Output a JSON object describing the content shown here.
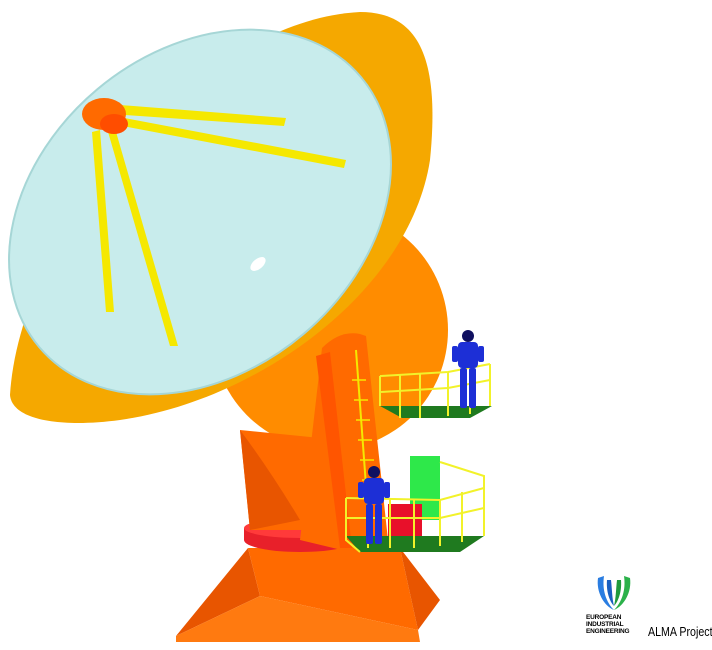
{
  "logo": {
    "line1": "EUROPEAN",
    "line2": "INDUSTRIAL",
    "line3": "ENGINEERING",
    "mark": "eie-logo-icon"
  },
  "caption": {
    "project": "ALMA  Project"
  },
  "colors": {
    "background": "#ffffff",
    "dish_surface": "#c8ecec",
    "dish_rim": "#f5a800",
    "support_struts": "#f5e800",
    "yoke": "#ff6a00",
    "elevation_housing": "#ff8c00",
    "platform_floor": "#1f7a1f",
    "railings": "#f2f22a",
    "workers": "#1d2fd6",
    "azimuth_bearing": "#e8202a",
    "cabinet_green": "#2ee84a",
    "cabinet_red": "#e8102a"
  }
}
